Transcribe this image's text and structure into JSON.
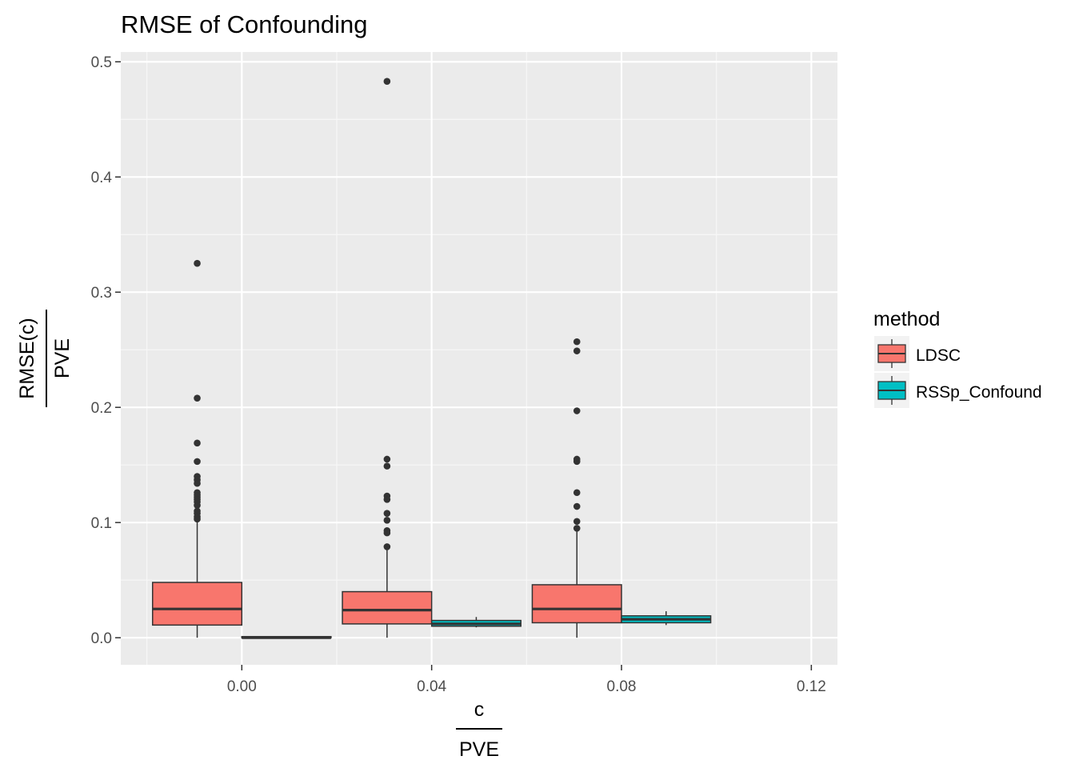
{
  "chart_data": {
    "type": "boxplot",
    "title": "RMSE of Confounding",
    "xlabel": {
      "numerator": "c",
      "denominator": "PVE"
    },
    "ylabel": {
      "numerator": "RMSE(c)",
      "denominator": "PVE"
    },
    "xlim": [
      -0.0255,
      0.1255
    ],
    "ylim": [
      -0.0235,
      0.5085
    ],
    "x_ticks": [
      0.0,
      0.04,
      0.08,
      0.12
    ],
    "x_tick_labels": [
      "0.00",
      "0.04",
      "0.08",
      "0.12"
    ],
    "y_ticks": [
      0.0,
      0.1,
      0.2,
      0.3,
      0.4,
      0.5
    ],
    "y_tick_labels": [
      "0.0",
      "0.1",
      "0.2",
      "0.3",
      "0.4",
      "0.5"
    ],
    "grid": true,
    "legend": {
      "title": "method",
      "placement": "right",
      "entries": [
        {
          "name": "LDSC",
          "color": "#F8766D"
        },
        {
          "name": "RSSp_Confound",
          "color": "#00BFC4"
        }
      ]
    },
    "groups": [
      0.0,
      0.04,
      0.08
    ],
    "series": [
      {
        "name": "LDSC",
        "color": "#F8766D",
        "boxes": [
          {
            "x": 0.0,
            "whisker_low": 0.0,
            "q1": 0.011,
            "median": 0.025,
            "q3": 0.048,
            "whisker_high": 0.102,
            "outliers": [
              0.325,
              0.208,
              0.169,
              0.153,
              0.14,
              0.137,
              0.134,
              0.126,
              0.124,
              0.122,
              0.12,
              0.118,
              0.115,
              0.11,
              0.108,
              0.105,
              0.103
            ]
          },
          {
            "x": 0.04,
            "whisker_low": 0.0,
            "q1": 0.012,
            "median": 0.024,
            "q3": 0.04,
            "whisker_high": 0.08,
            "outliers": [
              0.483,
              0.155,
              0.149,
              0.123,
              0.12,
              0.108,
              0.102,
              0.093,
              0.091,
              0.079
            ]
          },
          {
            "x": 0.08,
            "whisker_low": 0.0,
            "q1": 0.013,
            "median": 0.025,
            "q3": 0.046,
            "whisker_high": 0.094,
            "outliers": [
              0.257,
              0.249,
              0.197,
              0.155,
              0.153,
              0.126,
              0.114,
              0.101,
              0.095
            ]
          }
        ]
      },
      {
        "name": "RSSp_Confound",
        "color": "#00BFC4",
        "boxes": [
          {
            "x": 0.0,
            "whisker_low": 0.0,
            "q1": 0.0,
            "median": 0.0,
            "q3": 0.001,
            "whisker_high": 0.001,
            "outliers": []
          },
          {
            "x": 0.04,
            "whisker_low": 0.009,
            "q1": 0.01,
            "median": 0.012,
            "q3": 0.015,
            "whisker_high": 0.018,
            "outliers": []
          },
          {
            "x": 0.08,
            "whisker_low": 0.011,
            "q1": 0.013,
            "median": 0.016,
            "q3": 0.019,
            "whisker_high": 0.023,
            "outliers": []
          }
        ]
      }
    ]
  }
}
